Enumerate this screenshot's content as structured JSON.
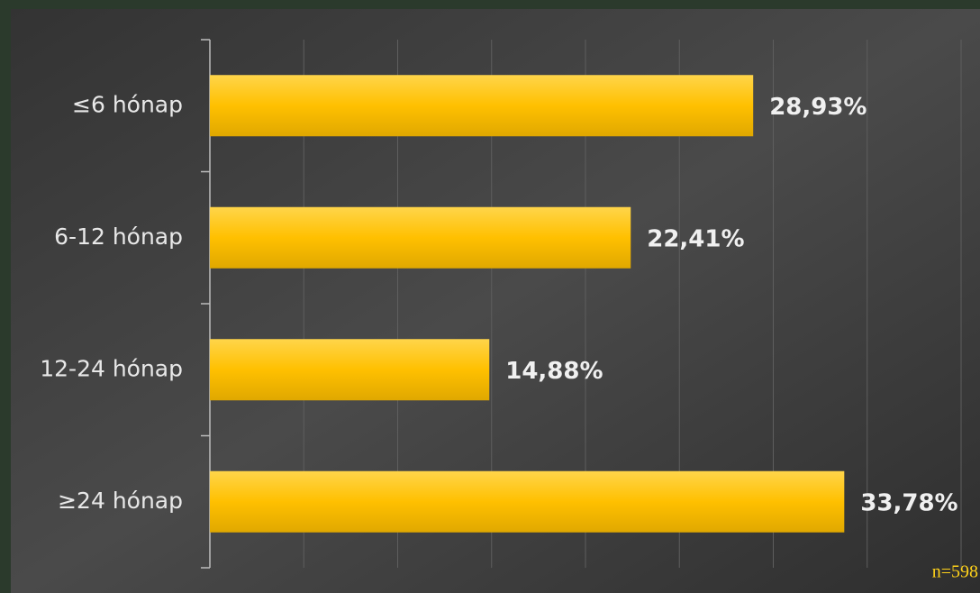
{
  "chart_data": {
    "type": "bar",
    "orientation": "horizontal",
    "categories": [
      "≤6 hónap",
      "6-12 hónap",
      "12-24 hónap",
      "≥24 hónap"
    ],
    "values": [
      28.93,
      22.41,
      14.88,
      33.78
    ],
    "value_labels": [
      "28,93%",
      "22,41%",
      "14,88%",
      "33,78%"
    ],
    "color": "#ffc000",
    "xlim": [
      0,
      40
    ],
    "xticks": [
      0,
      5,
      10,
      15,
      20,
      25,
      30,
      35,
      40
    ],
    "grid": true,
    "annotation": "n=598"
  }
}
